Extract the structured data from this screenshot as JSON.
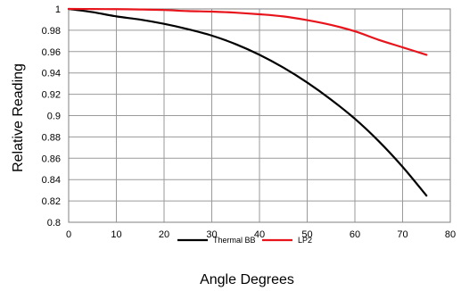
{
  "chart_data": {
    "type": "line",
    "title": "",
    "xlabel": "Angle Degrees",
    "ylabel": "Relative Reading",
    "xlim": [
      0,
      80
    ],
    "ylim": [
      0.8,
      1
    ],
    "x_ticks": [
      0,
      10,
      20,
      30,
      40,
      50,
      60,
      70,
      80
    ],
    "y_ticks": [
      0.8,
      0.82,
      0.84,
      0.86,
      0.88,
      0.9,
      0.92,
      0.94,
      0.96,
      0.98,
      1
    ],
    "y_tick_labels": [
      "0.8",
      "0.82",
      "0.84",
      "0.86",
      "0.88",
      "0.9",
      "0.92",
      "0.94",
      "0.96",
      "0.98",
      "1"
    ],
    "grid": true,
    "legend_position": "bottom",
    "series": [
      {
        "name": "Thermal BB",
        "color": "#000000",
        "x": [
          0,
          5,
          10,
          15,
          20,
          25,
          30,
          35,
          40,
          45,
          50,
          55,
          60,
          65,
          70,
          75
        ],
        "y": [
          1.0,
          0.997,
          0.993,
          0.99,
          0.986,
          0.981,
          0.975,
          0.967,
          0.957,
          0.945,
          0.931,
          0.915,
          0.897,
          0.876,
          0.852,
          0.825
        ]
      },
      {
        "name": "LP2",
        "color": "#e8141c",
        "x": [
          0,
          5,
          10,
          15,
          20,
          25,
          30,
          35,
          40,
          45,
          50,
          55,
          60,
          65,
          70,
          75
        ],
        "y": [
          1.0,
          0.9999,
          0.9998,
          0.9995,
          0.999,
          0.998,
          0.9975,
          0.9965,
          0.995,
          0.993,
          0.9895,
          0.985,
          0.979,
          0.971,
          0.964,
          0.957
        ]
      }
    ]
  }
}
